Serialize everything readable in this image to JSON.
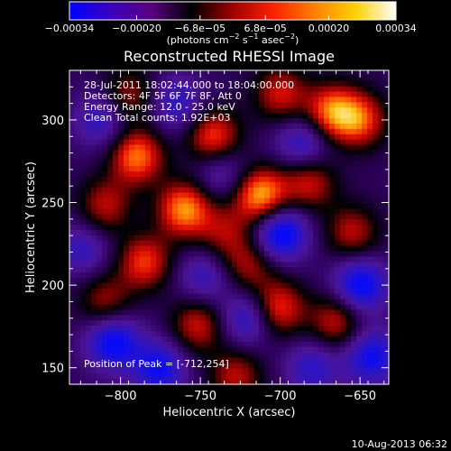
{
  "chart_data": {
    "type": "heatmap",
    "title": "Reconstructed RHESSI Image",
    "xlabel": "Heliocentric X (arcsec)",
    "ylabel": "Heliocentric Y (arcsec)",
    "xlim": [
      -832,
      -632
    ],
    "ylim": [
      140,
      330
    ],
    "x_ticks": [
      "−800",
      "−750",
      "−700",
      "−650"
    ],
    "x_tick_values": [
      -800,
      -750,
      -700,
      -650
    ],
    "y_ticks": [
      "150",
      "200",
      "250",
      "300"
    ],
    "y_tick_values": [
      150,
      200,
      250,
      300
    ],
    "colorbar": {
      "ticks": [
        "−0.00034",
        "−0.00020",
        "−6.8e−05",
        "6.8e−05",
        "0.00020",
        "0.00034"
      ],
      "tick_values": [
        -0.00034,
        -0.0002,
        -6.8e-05,
        6.8e-05,
        0.0002,
        0.00034
      ],
      "range": [
        -0.00034,
        0.00034
      ],
      "unit_prefix": "(photons cm",
      "unit_exp1": "−2",
      "unit_mid": " s",
      "unit_exp2": "−1",
      "unit_mid2": " asec",
      "unit_exp3": "−2",
      "unit_suffix": ")",
      "colors": [
        "#0000ff",
        "#3a00c0",
        "#5a0080",
        "#000000",
        "#a00000",
        "#ff2000",
        "#ff8000",
        "#ffd000",
        "#ffffff"
      ]
    },
    "annotations": [
      "28-Jul-2011 18:02:44.000 to 18:04:00.000",
      "Detectors: 4F 5F 6F 7F 8F, Att 0",
      "Energy Range: 12.0 - 25.0 keV",
      "Clean     Total counts: 1.92E+03"
    ],
    "peak_label": "Position of Peak = [-712,254]",
    "peak": [
      -712,
      254
    ],
    "sources": [
      {
        "x": -712,
        "y": 254,
        "v": 1.0
      },
      {
        "x": -760,
        "y": 246,
        "v": 0.9
      },
      {
        "x": -790,
        "y": 278,
        "v": 0.85
      },
      {
        "x": -742,
        "y": 290,
        "v": 0.75
      },
      {
        "x": -668,
        "y": 305,
        "v": 0.8
      },
      {
        "x": -700,
        "y": 316,
        "v": 0.6
      },
      {
        "x": -785,
        "y": 214,
        "v": 0.7
      },
      {
        "x": -810,
        "y": 248,
        "v": 0.55
      },
      {
        "x": -682,
        "y": 262,
        "v": 0.6
      },
      {
        "x": -655,
        "y": 232,
        "v": 0.55
      },
      {
        "x": -702,
        "y": 186,
        "v": 0.75
      },
      {
        "x": -720,
        "y": 212,
        "v": 0.5
      },
      {
        "x": -752,
        "y": 176,
        "v": 0.6
      },
      {
        "x": -665,
        "y": 178,
        "v": 0.6
      },
      {
        "x": -810,
        "y": 190,
        "v": 0.5
      },
      {
        "x": -728,
        "y": 145,
        "v": 0.55
      },
      {
        "x": -650,
        "y": 300,
        "v": 0.7
      },
      {
        "x": -795,
        "y": 315,
        "v": 0.5
      },
      {
        "x": -735,
        "y": 232,
        "v": 0.45
      },
      {
        "x": -776,
        "y": 150,
        "v": -0.7
      },
      {
        "x": -700,
        "y": 232,
        "v": -0.9
      },
      {
        "x": -650,
        "y": 200,
        "v": -0.8
      },
      {
        "x": -720,
        "y": 180,
        "v": -0.6
      },
      {
        "x": -805,
        "y": 166,
        "v": -0.8
      },
      {
        "x": -765,
        "y": 310,
        "v": -0.5
      },
      {
        "x": -686,
        "y": 286,
        "v": -0.55
      },
      {
        "x": -812,
        "y": 300,
        "v": -0.5
      },
      {
        "x": -748,
        "y": 205,
        "v": -0.45
      },
      {
        "x": -643,
        "y": 157,
        "v": -0.7
      },
      {
        "x": -680,
        "y": 150,
        "v": -0.5
      },
      {
        "x": -824,
        "y": 222,
        "v": -0.45
      },
      {
        "x": -737,
        "y": 268,
        "v": -0.4
      }
    ]
  },
  "timestamp": "10-Aug-2013 06:32"
}
